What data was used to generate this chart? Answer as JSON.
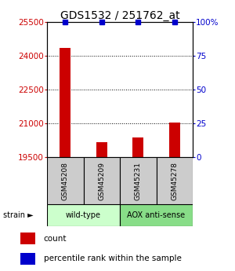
{
  "title": "GDS1532 / 251762_at",
  "samples": [
    "GSM45208",
    "GSM45209",
    "GSM45231",
    "GSM45278"
  ],
  "counts": [
    24350,
    20180,
    20380,
    21050
  ],
  "percentiles": [
    100,
    100,
    100,
    100
  ],
  "ylim_left": [
    19500,
    25500
  ],
  "ylim_right": [
    0,
    100
  ],
  "yticks_left": [
    19500,
    21000,
    22500,
    24000,
    25500
  ],
  "yticks_right": [
    0,
    25,
    50,
    75,
    100
  ],
  "yticklabels_right": [
    "0",
    "25",
    "50",
    "75",
    "100%"
  ],
  "groups": [
    {
      "label": "wild-type",
      "samples": [
        0,
        1
      ],
      "color": "#ccffcc"
    },
    {
      "label": "AOX anti-sense",
      "samples": [
        2,
        3
      ],
      "color": "#88dd88"
    }
  ],
  "bar_color": "#cc0000",
  "percentile_color": "#0000cc",
  "bar_width": 0.3,
  "background_color": "#ffffff",
  "title_fontsize": 10,
  "axis_label_color_left": "#cc0000",
  "axis_label_color_right": "#0000cc",
  "sample_box_color": "#cccccc",
  "strain_label": "strain"
}
